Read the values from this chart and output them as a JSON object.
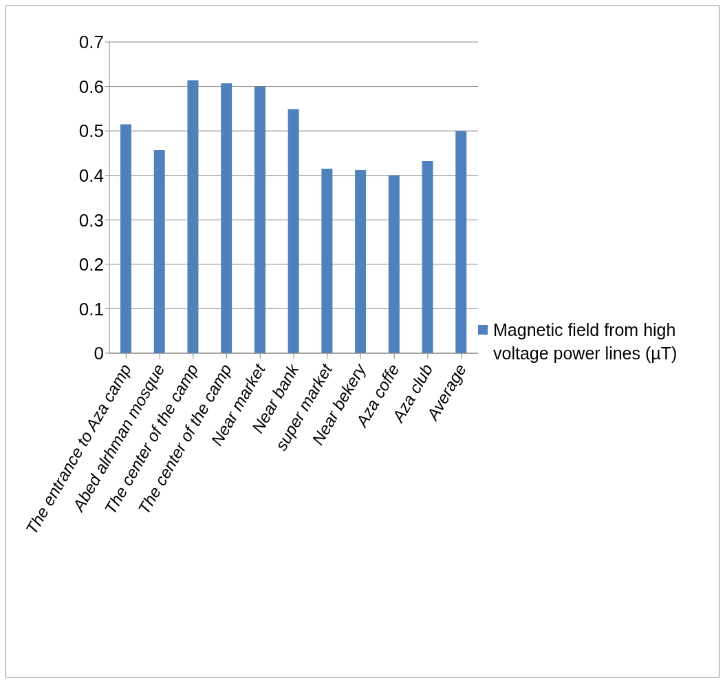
{
  "chart_data": {
    "type": "bar",
    "categories": [
      "The entrance to Aza camp",
      "Abed alrhman mosque",
      "The center of the camp",
      "The center of the camp",
      "Near market",
      "Near bank",
      "super market",
      "Near bekery",
      "Aza coffe",
      "Aza club",
      "Average"
    ],
    "series": [
      {
        "name": "Magnetic field from high voltage power lines (µT)",
        "color": "#4f81bd",
        "values": [
          0.515,
          0.457,
          0.614,
          0.607,
          0.6,
          0.549,
          0.415,
          0.412,
          0.4,
          0.432,
          0.5
        ]
      }
    ],
    "ylim": [
      0,
      0.7
    ],
    "yticks": [
      0,
      0.1,
      0.2,
      0.3,
      0.4,
      0.5,
      0.6,
      0.7
    ],
    "grid": "y",
    "legend": "right"
  }
}
